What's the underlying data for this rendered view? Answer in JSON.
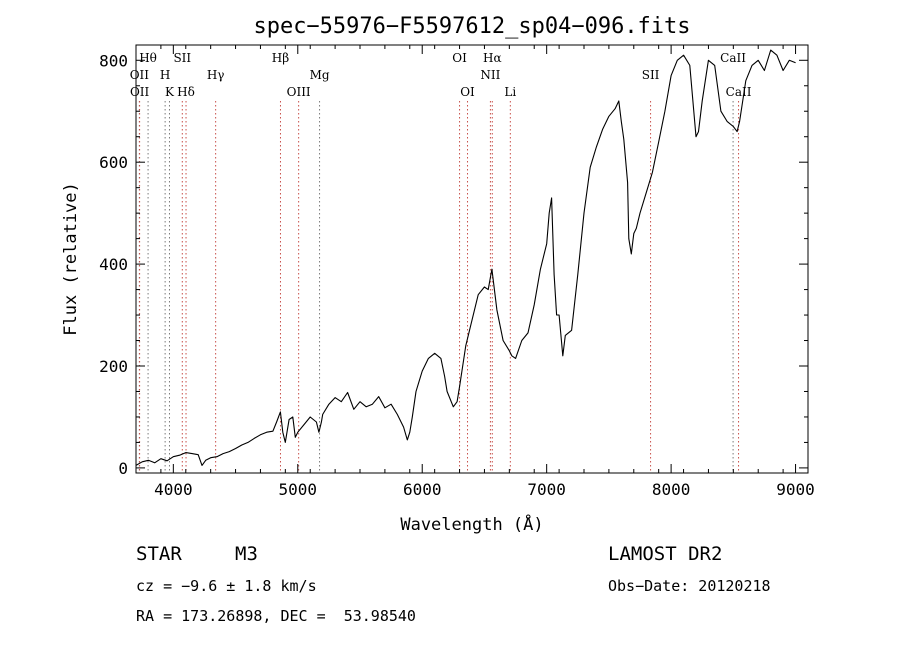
{
  "chart_data": {
    "type": "line",
    "title": "spec−55976−F5597612_sp04−096.fits",
    "xlabel": "Wavelength (Å)",
    "ylabel": "Flux (relative)",
    "xlim": [
      3700,
      9100
    ],
    "ylim": [
      -10,
      830
    ],
    "xticks": [
      4000,
      5000,
      6000,
      7000,
      8000,
      9000
    ],
    "yticks": [
      0,
      200,
      400,
      600,
      800
    ],
    "grid": false,
    "series": [
      {
        "x": [
          3700,
          3750,
          3800,
          3850,
          3900,
          3950,
          4000,
          4050,
          4100,
          4150,
          4200,
          4230,
          4260,
          4300,
          4350,
          4400,
          4450,
          4500,
          4550,
          4600,
          4650,
          4700,
          4750,
          4800,
          4830,
          4860,
          4880,
          4900,
          4930,
          4960,
          4980,
          5000,
          5050,
          5100,
          5150,
          5170,
          5190,
          5200,
          5250,
          5300,
          5350,
          5400,
          5450,
          5500,
          5550,
          5600,
          5650,
          5700,
          5750,
          5800,
          5850,
          5880,
          5900,
          5920,
          5950,
          6000,
          6050,
          6100,
          6150,
          6180,
          6200,
          6250,
          6280,
          6300,
          6350,
          6400,
          6450,
          6500,
          6530,
          6560,
          6600,
          6650,
          6700,
          6720,
          6750,
          6800,
          6850,
          6900,
          6950,
          7000,
          7020,
          7040,
          7060,
          7080,
          7100,
          7130,
          7150,
          7200,
          7250,
          7300,
          7350,
          7400,
          7450,
          7500,
          7550,
          7580,
          7600,
          7620,
          7650,
          7660,
          7680,
          7700,
          7720,
          7750,
          7800,
          7850,
          7900,
          7950,
          8000,
          8050,
          8100,
          8150,
          8200,
          8220,
          8250,
          8300,
          8350,
          8400,
          8450,
          8500,
          8530,
          8550,
          8600,
          8650,
          8700,
          8750,
          8800,
          8850,
          8900,
          8950,
          9000
        ],
        "y": [
          5,
          12,
          15,
          10,
          18,
          14,
          22,
          25,
          30,
          28,
          26,
          5,
          15,
          20,
          22,
          28,
          32,
          38,
          45,
          50,
          58,
          65,
          70,
          72,
          90,
          110,
          70,
          50,
          95,
          100,
          60,
          70,
          85,
          100,
          90,
          70,
          90,
          105,
          125,
          138,
          130,
          148,
          115,
          130,
          120,
          125,
          140,
          118,
          125,
          105,
          80,
          55,
          70,
          100,
          150,
          190,
          215,
          225,
          215,
          180,
          150,
          120,
          130,
          160,
          240,
          290,
          340,
          355,
          350,
          390,
          310,
          250,
          230,
          220,
          215,
          250,
          265,
          320,
          390,
          440,
          500,
          530,
          380,
          300,
          300,
          220,
          260,
          270,
          380,
          500,
          590,
          630,
          665,
          690,
          705,
          720,
          680,
          645,
          560,
          450,
          420,
          460,
          470,
          500,
          540,
          580,
          640,
          700,
          770,
          800,
          810,
          790,
          650,
          660,
          720,
          800,
          790,
          700,
          680,
          670,
          660,
          680,
          760,
          790,
          800,
          780,
          820,
          810,
          780,
          800,
          795
        ]
      }
    ],
    "lines": [
      {
        "label": "Hθ",
        "x": 3797,
        "row": 1,
        "red": false
      },
      {
        "label": "OII",
        "x": 3727,
        "row": 2,
        "red": false
      },
      {
        "label": "OII",
        "x": 3729,
        "row": 3,
        "red": true
      },
      {
        "label": "H",
        "x": 3934,
        "row": 2,
        "red": false
      },
      {
        "label": "K",
        "x": 3969,
        "row": 3,
        "red": false
      },
      {
        "label": "SII",
        "x": 4072,
        "row": 1,
        "red": true
      },
      {
        "label": "Hδ",
        "x": 4102,
        "row": 3,
        "red": true
      },
      {
        "label": "Hγ",
        "x": 4340,
        "row": 2,
        "red": true
      },
      {
        "label": "Hβ",
        "x": 4861,
        "row": 1,
        "red": true
      },
      {
        "label": "OIII",
        "x": 5007,
        "row": 3,
        "red": true
      },
      {
        "label": "Mg",
        "x": 5175,
        "row": 2,
        "red": false
      },
      {
        "label": "OI",
        "x": 6300,
        "row": 1,
        "red": true
      },
      {
        "label": "OI",
        "x": 6364,
        "row": 3,
        "red": true
      },
      {
        "label": "Hα",
        "x": 6563,
        "row": 1,
        "red": true
      },
      {
        "label": "NII",
        "x": 6548,
        "row": 2,
        "red": true
      },
      {
        "label": "Li",
        "x": 6708,
        "row": 3,
        "red": true
      },
      {
        "label": "SII",
        "x": 7835,
        "row": 2,
        "red": true
      },
      {
        "label": "CaII",
        "x": 8498,
        "row": 1,
        "red": false
      },
      {
        "label": "CaII",
        "x": 8542,
        "row": 3,
        "red": true
      }
    ]
  },
  "info": {
    "class": "STAR",
    "subclass": "M3",
    "survey": "LAMOST DR2",
    "cz": "cz = −9.6 ± 1.8 km/s",
    "obs_date": "Obs−Date: 20120218",
    "radec": "RA = 173.26898, DEC =  53.98540"
  }
}
